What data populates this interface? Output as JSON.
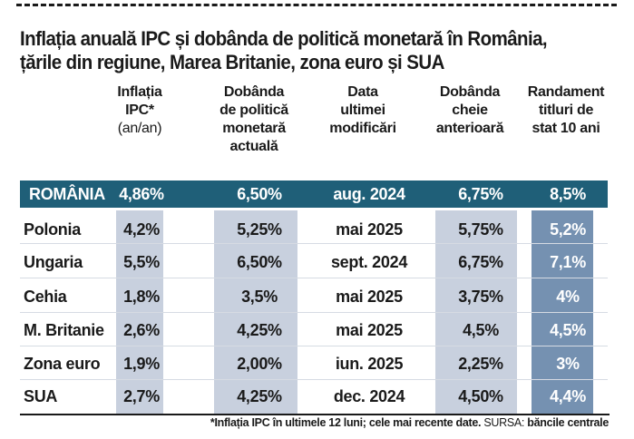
{
  "title": {
    "line1": "Inflația anuală IPC și dobânda de politică monetară în România,",
    "line2": "țările din regiune, Marea Britanie, zona euro și SUA"
  },
  "headers": {
    "inflation": [
      "Inflația",
      "IPC*",
      "(an/an)"
    ],
    "policy_rate": [
      "Dobânda",
      "de politică",
      "monetară",
      "actuală"
    ],
    "last_change": [
      "Data",
      "ultimei",
      "modificări"
    ],
    "previous_rate": [
      "Dobânda",
      "cheie",
      "anterioară"
    ],
    "bond_yield": [
      "Randament",
      "titluri de",
      "stat 10 ani"
    ]
  },
  "rows": [
    {
      "country": "ROMÂNIA",
      "inflation": "4,86%",
      "rate": "6,50%",
      "date": "aug. 2024",
      "prev": "6,75%",
      "yield": "8,5%"
    },
    {
      "country": "Polonia",
      "inflation": "4,2%",
      "rate": "5,25%",
      "date": "mai 2025",
      "prev": "5,75%",
      "yield": "5,2%"
    },
    {
      "country": "Ungaria",
      "inflation": "5,5%",
      "rate": "6,50%",
      "date": "sept. 2024",
      "prev": "6,75%",
      "yield": "7,1%"
    },
    {
      "country": "Cehia",
      "inflation": "1,8%",
      "rate": "3,5%",
      "date": "mai 2025",
      "prev": "3,75%",
      "yield": "4%"
    },
    {
      "country": "M. Britanie",
      "inflation": "2,6%",
      "rate": "4,25%",
      "date": "mai 2025",
      "prev": "4,5%",
      "yield": "4,5%"
    },
    {
      "country": "Zona euro",
      "inflation": "1,9%",
      "rate": "2,00%",
      "date": "iun. 2025",
      "prev": "2,25%",
      "yield": "3%"
    },
    {
      "country": "SUA",
      "inflation": "2,7%",
      "rate": "4,25%",
      "date": "dec. 2024",
      "prev": "4,50%",
      "yield": "4,4%"
    }
  ],
  "footnote": {
    "note": "*Inflația IPC în ultimele 12 luni; cele mai recente date.",
    "source_label": "SURSA:",
    "source": "băncile centrale"
  },
  "colors": {
    "highlight_band": "#1f5f78",
    "light_column_shade": "#c8d0de",
    "dark_column_shade": "#7591b1"
  }
}
